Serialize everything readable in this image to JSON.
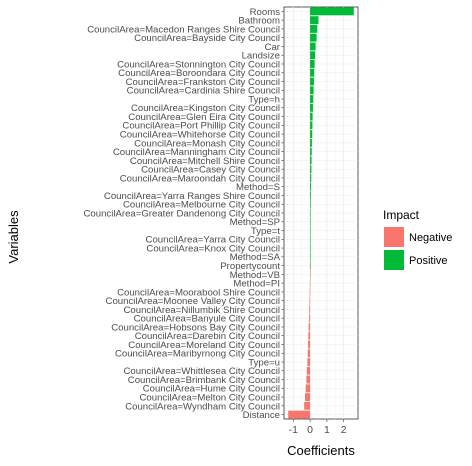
{
  "chart_data": {
    "type": "bar",
    "orientation": "horizontal",
    "xlabel": "Coefficients",
    "ylabel": "Variables",
    "xlim": [
      -1.55,
      2.85
    ],
    "xticks": [
      -1,
      0,
      1,
      2
    ],
    "xtick_labels": [
      "-1",
      "0",
      "1",
      "2"
    ],
    "grid": true,
    "legend": {
      "title": "Impact",
      "position": "right",
      "items": [
        {
          "label": "Negative",
          "color": "#F8766D"
        },
        {
          "label": "Positive",
          "color": "#00BA38"
        }
      ]
    },
    "categories": [
      "Rooms",
      "Bathroom",
      "CouncilArea=Macedon Ranges Shire Council",
      "CouncilArea=Bayside City Council",
      "Car",
      "Landsize",
      "CouncilArea=Stonnington City Council",
      "CouncilArea=Boroondara City Council",
      "CouncilArea=Frankston City Council",
      "CouncilArea=Cardinia Shire Council",
      "Type=h",
      "CouncilArea=Kingston City Council",
      "CouncilArea=Glen Eira City Council",
      "CouncilArea=Port Phillip City Council",
      "CouncilArea=Whitehorse City Council",
      "CouncilArea=Monash City Council",
      "CouncilArea=Manningham City Council",
      "CouncilArea=Mitchell Shire Council",
      "CouncilArea=Casey City Council",
      "CouncilArea=Maroondah City Council",
      "Method=S",
      "CouncilArea=Yarra Ranges Shire Council",
      "CouncilArea=Melbourne City Council",
      "CouncilArea=Greater Dandenong City Council",
      "Method=SP",
      "Type=t",
      "CouncilArea=Yarra City Council",
      "CouncilArea=Knox City Council",
      "Method=SA",
      "Propertycount",
      "Method=VB",
      "Method=PI",
      "CouncilArea=Moorabool Shire Council",
      "CouncilArea=Moonee Valley City Council",
      "CouncilArea=Nillumbik Shire Council",
      "CouncilArea=Banyule City Council",
      "CouncilArea=Hobsons Bay City Council",
      "CouncilArea=Darebin City Council",
      "CouncilArea=Moreland City Council",
      "CouncilArea=Maribyrnong City Council",
      "Type=u",
      "CouncilArea=Whittlesea City Council",
      "CouncilArea=Brimbank City Council",
      "CouncilArea=Hume City Council",
      "CouncilArea=Melton City Council",
      "CouncilArea=Wyndham City Council",
      "Distance"
    ],
    "values": [
      2.6,
      0.5,
      0.43,
      0.39,
      0.33,
      0.3,
      0.27,
      0.25,
      0.23,
      0.21,
      0.19,
      0.17,
      0.15,
      0.14,
      0.13,
      0.11,
      0.1,
      0.09,
      0.08,
      0.07,
      0.06,
      0.05,
      0.04,
      0.03,
      0.02,
      0.015,
      0.01,
      0.008,
      0.005,
      0.003,
      -0.003,
      -0.01,
      -0.02,
      -0.03,
      -0.05,
      -0.06,
      -0.08,
      -0.1,
      -0.12,
      -0.14,
      -0.16,
      -0.19,
      -0.22,
      -0.26,
      -0.3,
      -0.35,
      -1.3
    ]
  }
}
